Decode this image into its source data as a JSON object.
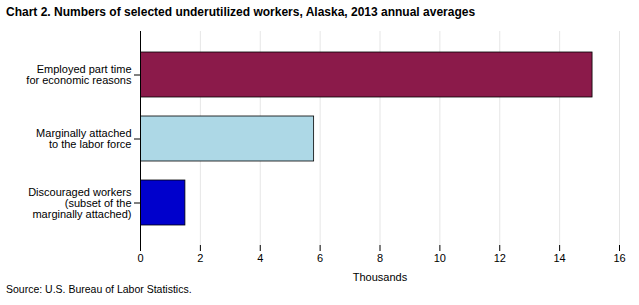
{
  "chart_data": {
    "type": "bar",
    "orientation": "horizontal",
    "title": "Chart 2.  Numbers of selected underutilized workers, Alaska, 2013  annual averages",
    "categories": [
      "Discouraged workers\n(subset of the\nmarginally attached)",
      "Marginally attached\nto the labor force",
      "Employed part time\nfor economic reasons"
    ],
    "values": [
      1.5,
      5.8,
      15.1
    ],
    "colors": [
      "#0000cc",
      "#add8e6",
      "#8b1a4a"
    ],
    "xlabel": "Thousands",
    "xlim": [
      0,
      16
    ],
    "xticks": [
      0,
      2,
      4,
      6,
      8,
      10,
      12,
      14,
      16
    ],
    "grid": true,
    "source": "Source: U.S. Bureau of Labor Statistics."
  }
}
